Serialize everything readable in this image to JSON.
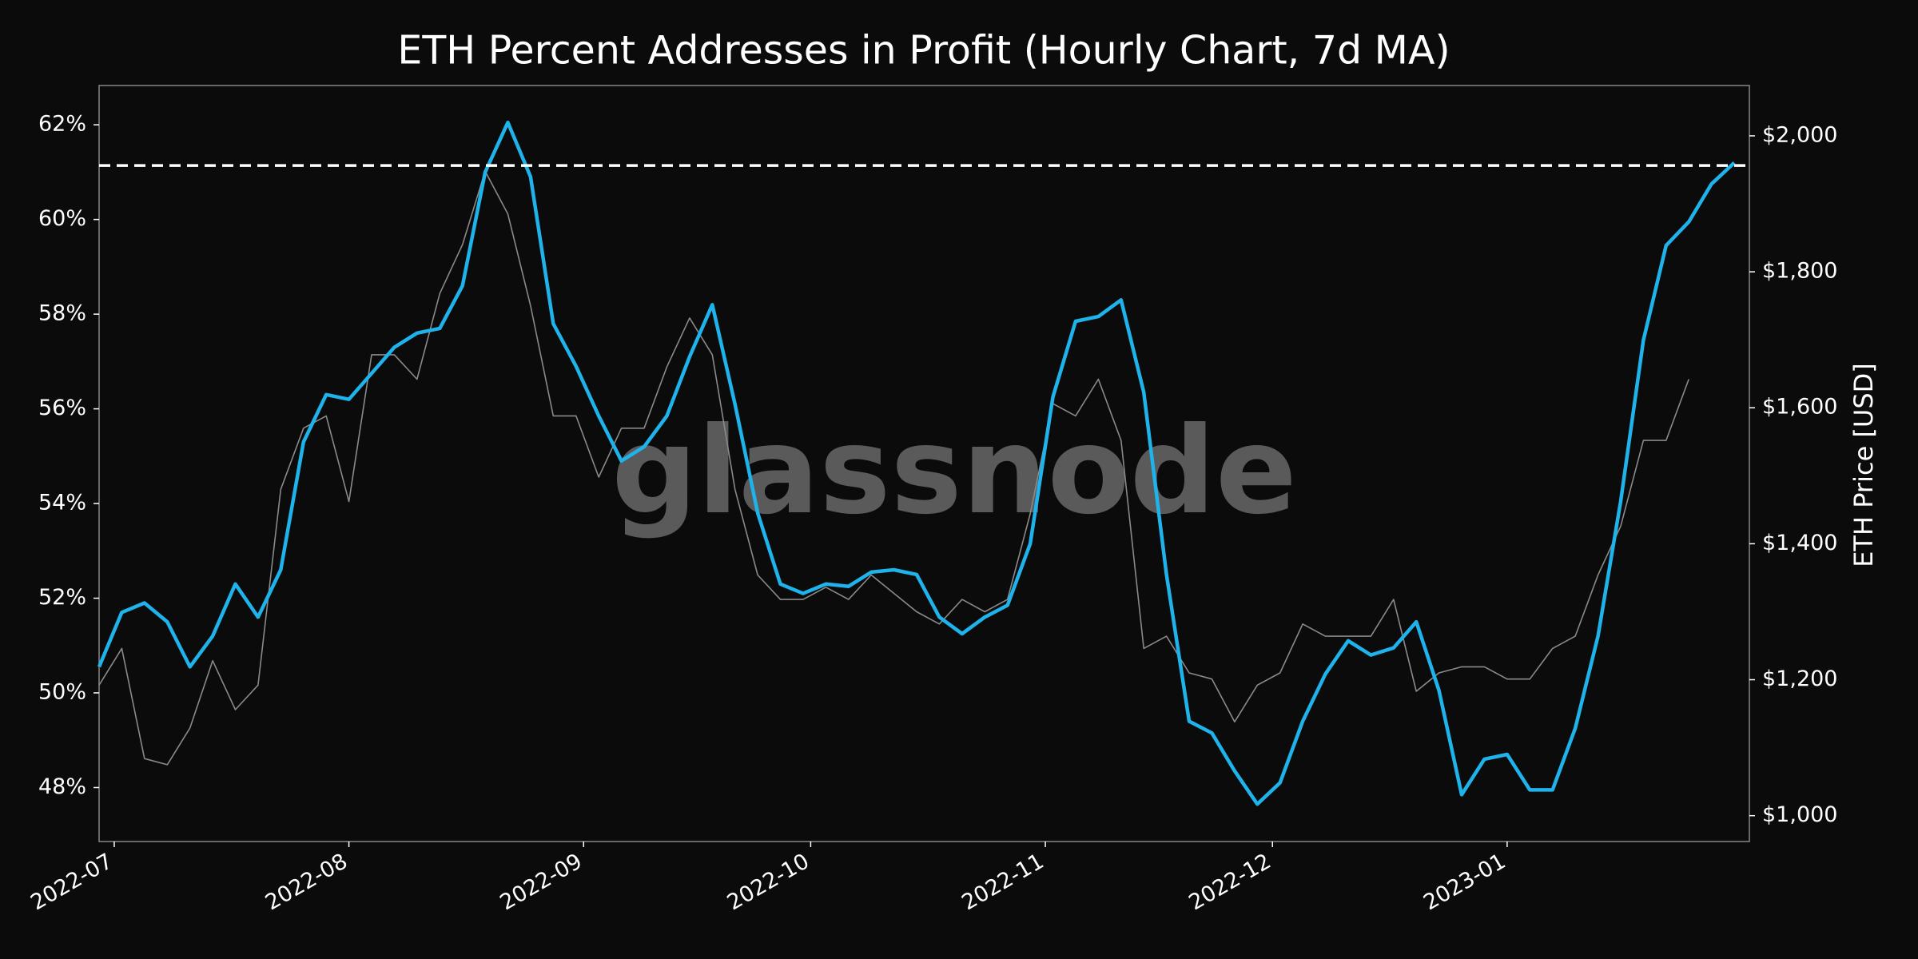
{
  "chart_data": {
    "type": "line",
    "title": "ETH Percent Addresses in Profit (Hourly Chart, 7d MA)",
    "y2_label": "ETH Price [USD]",
    "watermark": "glassnode",
    "background": "#0b0b0b",
    "xlim": [
      0,
      218
    ],
    "xticks": [
      {
        "value": 2,
        "label": "2022-07"
      },
      {
        "value": 33,
        "label": "2022-08"
      },
      {
        "value": 64,
        "label": "2022-09"
      },
      {
        "value": 94,
        "label": "2022-10"
      },
      {
        "value": 125,
        "label": "2022-11"
      },
      {
        "value": 155,
        "label": "2022-12"
      },
      {
        "value": 186,
        "label": "2023-01"
      }
    ],
    "ylim": [
      46.86,
      62.83
    ],
    "yticks": [
      {
        "value": 48,
        "label": "48%"
      },
      {
        "value": 50,
        "label": "50%"
      },
      {
        "value": 52,
        "label": "52%"
      },
      {
        "value": 54,
        "label": "54%"
      },
      {
        "value": 56,
        "label": "56%"
      },
      {
        "value": 58,
        "label": "58%"
      },
      {
        "value": 60,
        "label": "60%"
      },
      {
        "value": 62,
        "label": "62%"
      }
    ],
    "y2lim": [
      962,
      2074
    ],
    "y2ticks": [
      {
        "value": 1000,
        "label": "$1,000"
      },
      {
        "value": 1200,
        "label": "$1,200"
      },
      {
        "value": 1400,
        "label": "$1,400"
      },
      {
        "value": 1600,
        "label": "$1,600"
      },
      {
        "value": 1800,
        "label": "$1,800"
      },
      {
        "value": 2000,
        "label": "$2,000"
      }
    ],
    "hline": {
      "value": 61.14,
      "color": "#ffffff"
    },
    "x": [
      0,
      3,
      6,
      9,
      12,
      15,
      18,
      21,
      24,
      27,
      30,
      33,
      36,
      39,
      42,
      45,
      48,
      51,
      54,
      57,
      60,
      63,
      66,
      69,
      72,
      75,
      78,
      81,
      84,
      87,
      90,
      93,
      96,
      99,
      102,
      105,
      108,
      111,
      114,
      117,
      120,
      123,
      126,
      129,
      132,
      135,
      138,
      141,
      144,
      147,
      150,
      153,
      156,
      159,
      162,
      165,
      168,
      171,
      174,
      177,
      180,
      183,
      186,
      189,
      192,
      195,
      198,
      201,
      204,
      207,
      210,
      213,
      216
    ],
    "series": [
      {
        "name": "ETH Price",
        "axis": "y2",
        "color": "#8a8a8a",
        "values": [
          1192,
          1246,
          1084,
          1075,
          1129,
          1228,
          1156,
          1192,
          1480,
          1570,
          1588,
          1462,
          1678,
          1678,
          1642,
          1768,
          1840,
          1948,
          1885,
          1750,
          1588,
          1588,
          1498,
          1570,
          1570,
          1660,
          1732,
          1678,
          1480,
          1354,
          1318,
          1318,
          1336,
          1318,
          1354,
          1327,
          1300,
          1282,
          1318,
          1300,
          1318,
          1444,
          1606,
          1588,
          1642,
          1552,
          1246,
          1264,
          1210,
          1201,
          1138,
          1192,
          1210,
          1282,
          1264,
          1264,
          1264,
          1318,
          1183,
          1210,
          1219,
          1219,
          1201,
          1201,
          1246,
          1264,
          1354,
          1426,
          1552,
          1552,
          1642,
          null,
          null
        ]
      },
      {
        "name": "Percent Addresses in Profit",
        "axis": "y",
        "color": "#1fb3ec",
        "values": [
          50.55,
          51.7,
          51.9,
          51.5,
          50.55,
          51.2,
          52.3,
          51.6,
          52.6,
          55.3,
          56.3,
          56.2,
          56.75,
          57.3,
          57.6,
          57.7,
          58.6,
          61.0,
          62.05,
          60.9,
          57.8,
          56.9,
          55.85,
          54.9,
          55.2,
          55.85,
          57.1,
          58.2,
          56.1,
          53.8,
          52.3,
          52.1,
          52.3,
          52.25,
          52.55,
          52.6,
          52.5,
          51.6,
          51.25,
          51.6,
          51.85,
          53.15,
          56.25,
          57.85,
          57.95,
          58.3,
          56.35,
          52.5,
          49.4,
          49.15,
          48.35,
          47.65,
          48.1,
          49.4,
          50.4,
          51.1,
          50.8,
          50.95,
          51.5,
          50.05,
          47.85,
          48.6,
          48.7,
          47.95,
          47.95,
          49.25,
          51.2,
          54.05,
          57.45,
          59.45,
          59.95,
          60.75,
          61.2
        ]
      }
    ]
  }
}
